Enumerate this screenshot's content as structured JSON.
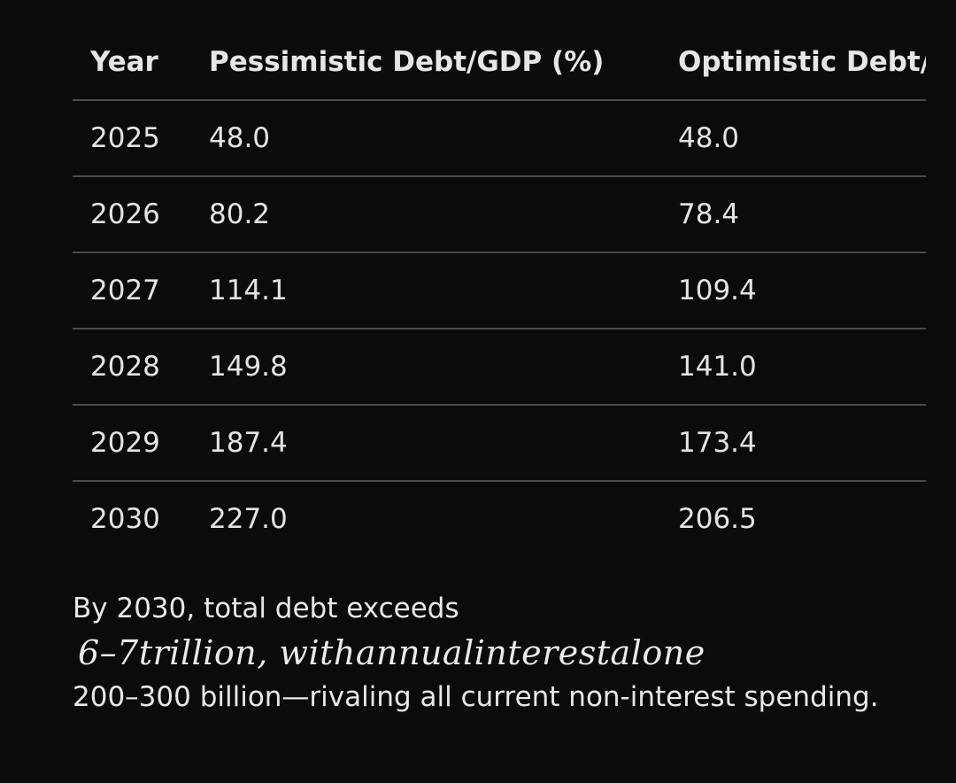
{
  "table": {
    "headers": [
      "Year",
      "Pessimistic Debt/GDP (%)",
      "Optimistic Debt/GDP (%)"
    ],
    "rows": [
      [
        "2025",
        "48.0",
        "48.0"
      ],
      [
        "2026",
        "80.2",
        "78.4"
      ],
      [
        "2027",
        "114.1",
        "109.4"
      ],
      [
        "2028",
        "149.8",
        "141.0"
      ],
      [
        "2029",
        "187.4",
        "173.4"
      ],
      [
        "2030",
        "227.0",
        "206.5"
      ]
    ]
  },
  "paragraph": {
    "line1": "By 2030, total debt exceeds",
    "math": "6–7trillion, withannualinterestalone",
    "line3": "200–300 billion—rivaling all current non-interest spending."
  }
}
